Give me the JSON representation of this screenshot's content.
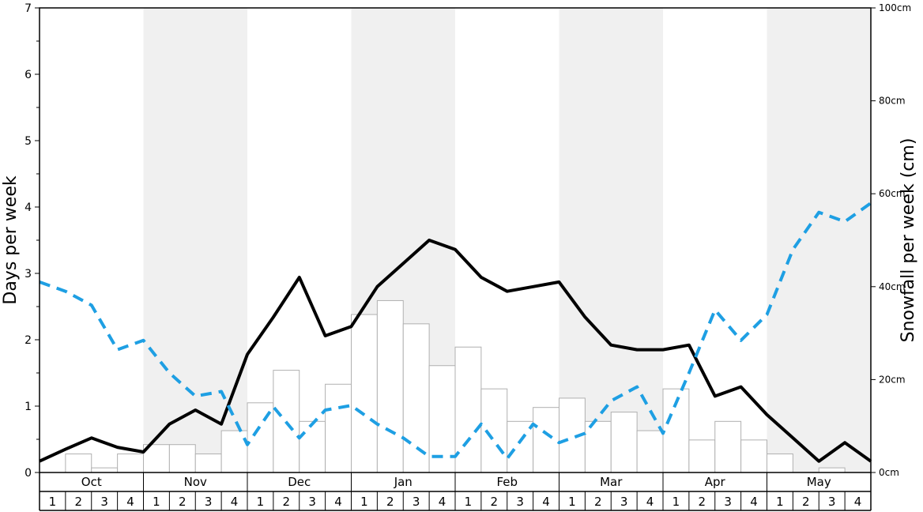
{
  "chart_data": {
    "type": "bar+line",
    "months": [
      "Oct",
      "Nov",
      "Dec",
      "Jan",
      "Feb",
      "Mar",
      "Apr",
      "May"
    ],
    "week_labels": [
      "1",
      "2",
      "3",
      "4"
    ],
    "y_left_label": "Days per week",
    "y_right_label": "Snowfall per week (cm)",
    "y_left_ticks": [
      "0",
      "1",
      "2",
      "3",
      "4",
      "5",
      "6",
      "7"
    ],
    "y_left_range": [
      0,
      7
    ],
    "y_right_ticks": [
      "0cm",
      "20cm",
      "40cm",
      "60cm",
      "80cm",
      "100cm"
    ],
    "y_right_range": [
      0,
      100
    ],
    "snowfall_cm": [
      0,
      4,
      1,
      4,
      6,
      6,
      4,
      9,
      15,
      22,
      11,
      19,
      34,
      37,
      32,
      23,
      27,
      18,
      11,
      14,
      16,
      11,
      13,
      9,
      18,
      7,
      11,
      7,
      4,
      0,
      1,
      0
    ],
    "series": [
      {
        "name": "",
        "style": "solid",
        "color": "#000000",
        "axis": "left",
        "values": [
          0.17,
          0.35,
          0.52,
          0.38,
          0.31,
          0.73,
          0.94,
          0.73,
          1.78,
          2.34,
          2.94,
          2.06,
          2.2,
          2.8,
          3.15,
          3.5,
          3.36,
          2.94,
          2.73,
          2.8,
          2.87,
          2.34,
          1.92,
          1.85,
          1.85,
          1.92,
          1.15,
          1.29,
          0.87,
          0.52,
          0.17,
          0.45,
          0.17
        ]
      },
      {
        "name": "",
        "style": "dashed",
        "color": "#1e9fe3",
        "axis": "left",
        "values": [
          2.87,
          2.73,
          2.52,
          1.85,
          1.99,
          1.5,
          1.15,
          1.22,
          0.42,
          0.99,
          0.52,
          0.94,
          1.01,
          0.73,
          0.52,
          0.24,
          0.24,
          0.73,
          0.21,
          0.73,
          0.45,
          0.59,
          1.08,
          1.29,
          0.59,
          1.5,
          2.45,
          1.99,
          2.38,
          3.36,
          3.92,
          3.78,
          4.06
        ]
      }
    ],
    "colors": {
      "band_shade": "#f0f0f0",
      "bar_fill": "#ffffff",
      "bar_stroke": "#b0b0b0"
    }
  }
}
